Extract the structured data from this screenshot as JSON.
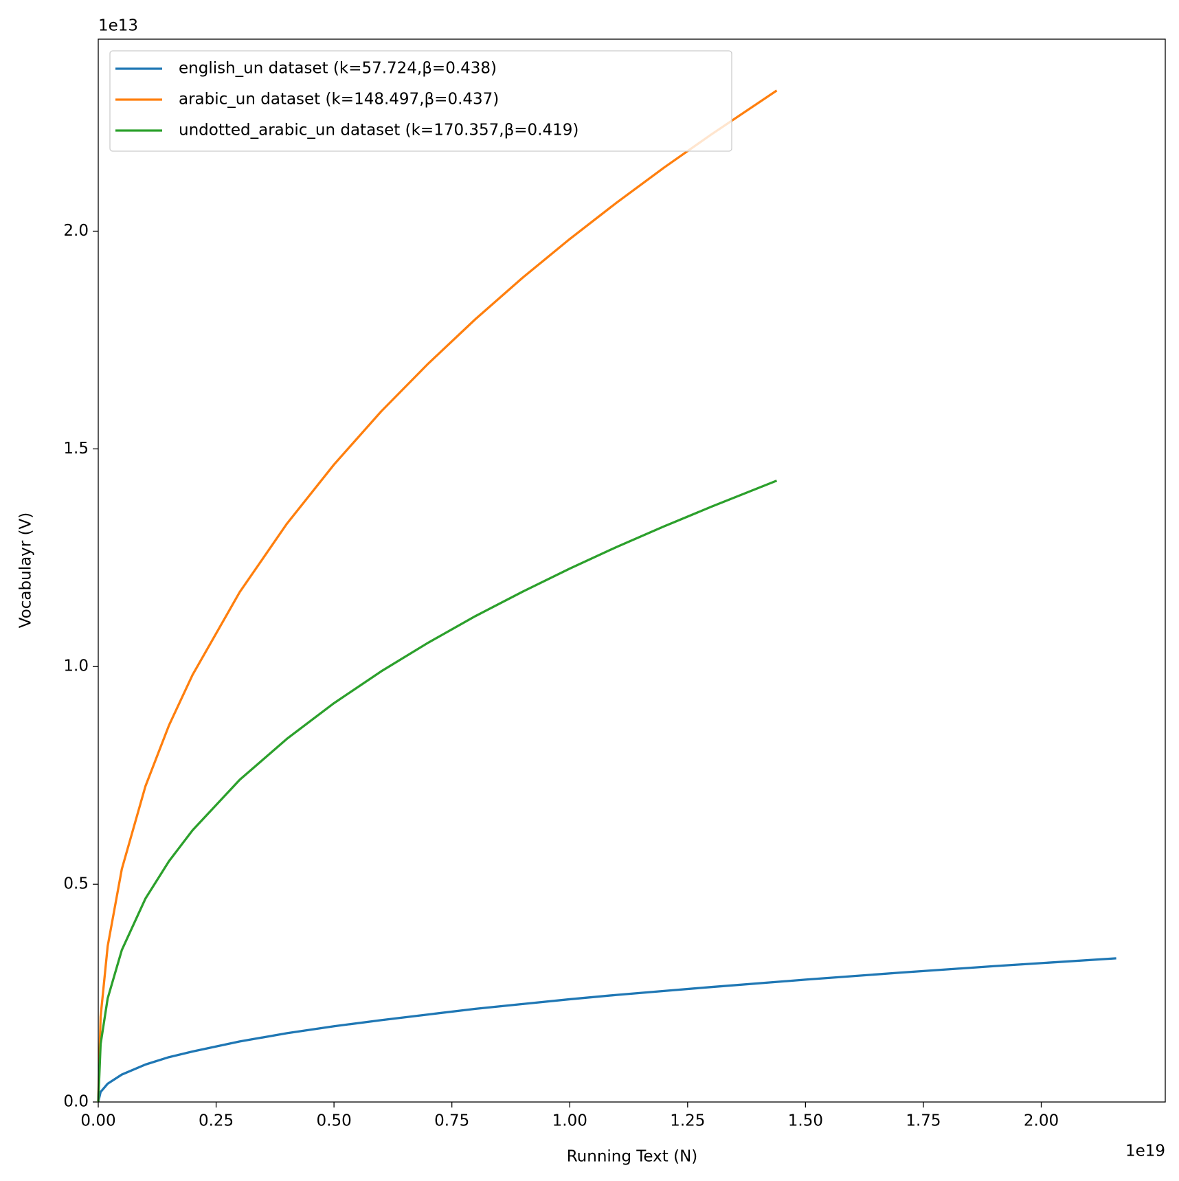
{
  "chart_data": {
    "type": "line",
    "x_label": "Running Text (N)",
    "y_label": "Vocabulayr (V)",
    "x_offset_label": "1e19",
    "y_offset_label": "1e13",
    "xlim": [
      0,
      2.263
    ],
    "ylim": [
      0,
      2.441
    ],
    "xticks": [
      {
        "value": 0,
        "label": "0.00"
      },
      0.25,
      {
        "value": 0.5,
        "label": "0.50"
      },
      0.75,
      {
        "value": 1,
        "label": "1.00"
      },
      1.25,
      {
        "value": 1.5,
        "label": "1.50"
      },
      1.75,
      {
        "value": 2,
        "label": "2.00"
      }
    ],
    "yticks": [
      {
        "value": 0,
        "label": "0.0"
      },
      0.5,
      {
        "value": 1,
        "label": "1.0"
      },
      1.5,
      {
        "value": 2,
        "label": "2.0"
      }
    ],
    "legend": "upper left",
    "grid": false,
    "series": [
      {
        "name": "english_un dataset (k=57.724,β=0.438)",
        "color": "#1f77b4",
        "x": [
          0,
          0.005,
          0.02,
          0.05,
          0.1,
          0.15,
          0.2,
          0.3,
          0.4,
          0.5,
          0.6,
          0.7,
          0.8,
          0.9,
          1.0,
          1.1,
          1.2,
          1.3,
          1.5,
          1.7,
          1.9,
          2.159
        ],
        "values": [
          0,
          0.023,
          0.042,
          0.063,
          0.086,
          0.103,
          0.116,
          0.139,
          0.158,
          0.174,
          0.188,
          0.201,
          0.214,
          0.225,
          0.236,
          0.246,
          0.255,
          0.264,
          0.281,
          0.297,
          0.312,
          0.33
        ]
      },
      {
        "name": "arabic_un dataset (k=148.497,β=0.437)",
        "color": "#ff7f0e",
        "x": [
          0,
          0.005,
          0.02,
          0.05,
          0.1,
          0.15,
          0.2,
          0.3,
          0.4,
          0.5,
          0.6,
          0.7,
          0.8,
          0.9,
          1.0,
          1.1,
          1.2,
          1.3,
          1.439
        ],
        "values": [
          0,
          0.196,
          0.358,
          0.535,
          0.725,
          0.865,
          0.981,
          1.171,
          1.328,
          1.464,
          1.586,
          1.696,
          1.798,
          1.893,
          1.982,
          2.066,
          2.146,
          2.222,
          2.323
        ]
      },
      {
        "name": "undotted_arabic_un dataset (k=170.357,β=0.419)",
        "color": "#2ca02c",
        "x": [
          0,
          0.005,
          0.02,
          0.05,
          0.1,
          0.15,
          0.2,
          0.3,
          0.4,
          0.5,
          0.6,
          0.7,
          0.8,
          0.9,
          1.0,
          1.1,
          1.2,
          1.3,
          1.439
        ],
        "values": [
          0,
          0.133,
          0.238,
          0.349,
          0.467,
          0.553,
          0.624,
          0.74,
          0.834,
          0.916,
          0.989,
          1.055,
          1.116,
          1.172,
          1.225,
          1.275,
          1.322,
          1.367,
          1.427
        ]
      }
    ]
  }
}
